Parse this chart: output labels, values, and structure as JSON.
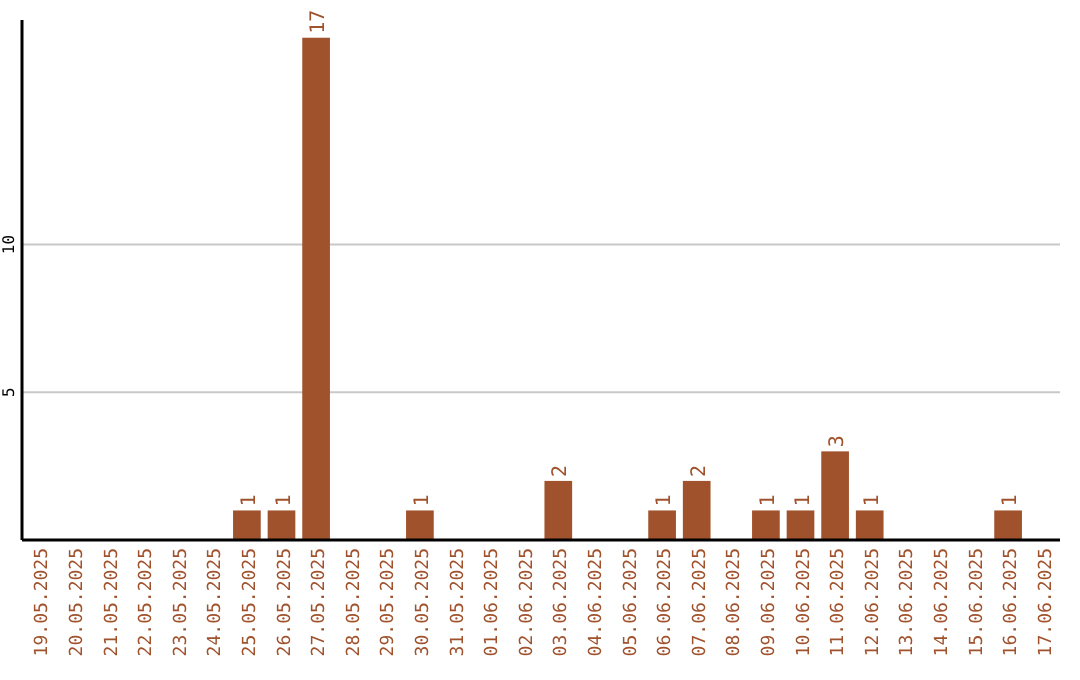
{
  "chart_data": {
    "type": "bar",
    "categories": [
      "19.05.2025",
      "20.05.2025",
      "21.05.2025",
      "22.05.2025",
      "23.05.2025",
      "24.05.2025",
      "25.05.2025",
      "26.05.2025",
      "27.05.2025",
      "28.05.2025",
      "29.05.2025",
      "30.05.2025",
      "31.05.2025",
      "01.06.2025",
      "02.06.2025",
      "03.06.2025",
      "04.06.2025",
      "05.06.2025",
      "06.06.2025",
      "07.06.2025",
      "08.06.2025",
      "09.06.2025",
      "10.06.2025",
      "11.06.2025",
      "12.06.2025",
      "13.06.2025",
      "14.06.2025",
      "15.06.2025",
      "16.06.2025",
      "17.06.2025"
    ],
    "values": [
      0,
      0,
      0,
      0,
      0,
      0,
      1,
      1,
      17,
      0,
      0,
      1,
      0,
      0,
      0,
      2,
      0,
      0,
      1,
      2,
      0,
      1,
      1,
      3,
      1,
      0,
      0,
      0,
      1,
      0
    ],
    "value_labels": [
      null,
      null,
      null,
      null,
      null,
      null,
      "1",
      "1",
      "17",
      null,
      null,
      "1",
      null,
      null,
      null,
      "2",
      null,
      null,
      "1",
      "2",
      null,
      "1",
      "1",
      "3",
      "1",
      null,
      null,
      null,
      "1",
      null
    ],
    "color": "#a0522d",
    "ylim": [
      0,
      17.6
    ],
    "yticks": [
      5,
      10
    ],
    "grid": "y"
  }
}
